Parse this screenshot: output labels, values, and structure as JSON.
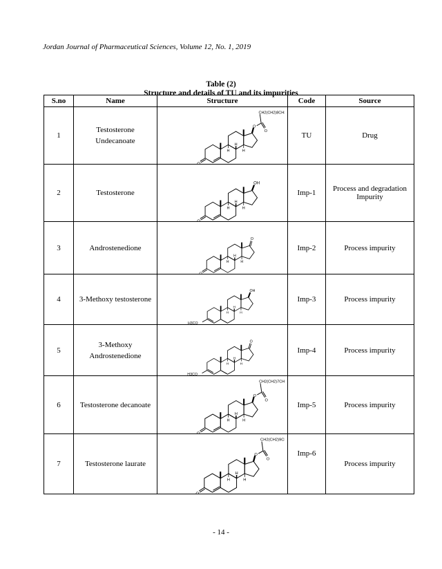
{
  "running_head": "Jordan Journal of Pharmaceutical Sciences, Volume 12, No. 1, 2019",
  "table": {
    "number": "Table (2)",
    "title": "Structure and details of TU and its impurities",
    "headers": [
      "S.no",
      "Name",
      "Structure",
      "Code",
      "Source"
    ],
    "rows": [
      {
        "sno": "1",
        "name": "Testosterone Undecanoate",
        "code": "TU",
        "source": "Drug",
        "structure": {
          "ringA": "enone",
          "c17": "ester",
          "chain": "CH2(CH2)8CH3"
        }
      },
      {
        "sno": "2",
        "name": "Testosterone",
        "code": "Imp-1",
        "source": "Process and degradation Impurity",
        "structure": {
          "ringA": "enone",
          "c17": "hydroxyl",
          "group": "OH"
        }
      },
      {
        "sno": "3",
        "name": "Androstenedione",
        "code": "Imp-2",
        "source": "Process impurity",
        "structure": {
          "ringA": "enone",
          "c17": "ketone",
          "group": "O"
        }
      },
      {
        "sno": "4",
        "name": "3-Methoxy testosterone",
        "code": "Imp-3",
        "source": "Process impurity",
        "structure": {
          "ringA": "methoxy-diene",
          "c17": "hydroxyl",
          "group": "OH",
          "methoxy": "H3CO"
        }
      },
      {
        "sno": "5",
        "name": "3-Methoxy Androstenedione",
        "code": "Imp-4",
        "source": "Process impurity",
        "structure": {
          "ringA": "methoxy-diene",
          "c17": "ketone",
          "group": "O",
          "methoxy": "H3CO"
        }
      },
      {
        "sno": "6",
        "name": "Testosterone decanoate",
        "code": "Imp-5",
        "source": "Process impurity",
        "structure": {
          "ringA": "enone",
          "c17": "ester",
          "chain": "CH2(CH2)7CH3"
        }
      },
      {
        "sno": "7",
        "name": "Testosterone laurate",
        "code": "Imp-6",
        "source": "Process impurity",
        "structure": {
          "ringA": "enone",
          "c17": "ester",
          "chain": "CH2(CH2)9CH3"
        }
      }
    ]
  },
  "page_number": "- 14 -"
}
